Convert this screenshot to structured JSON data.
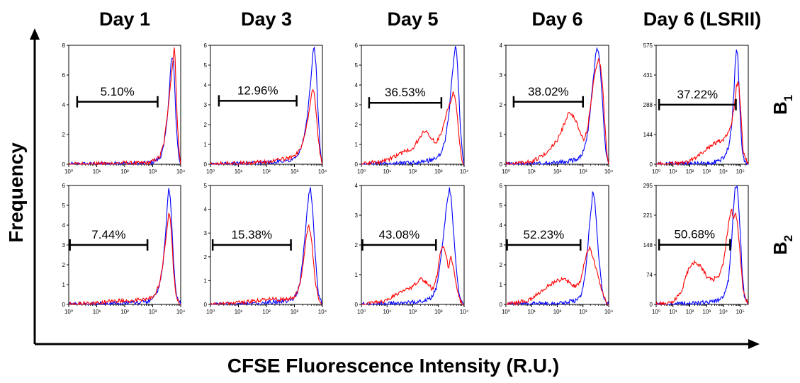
{
  "figure": {
    "x_axis_title": "CFSE Fluorescence Intensity (R.U.)",
    "y_axis_title": "Frequency",
    "column_titles": [
      "Day 1",
      "Day 3",
      "Day 5",
      "Day 6",
      "Day 6 (LSRII)"
    ],
    "row_labels": [
      {
        "main": "B",
        "sub": "1"
      },
      {
        "main": "B",
        "sub": "2"
      }
    ],
    "colors": {
      "series_blue": "#0000ff",
      "series_red": "#ff0000",
      "axis": "#000000"
    }
  },
  "chart_data": [
    {
      "type": "line",
      "panel": "B1 Day 1",
      "xscale": "log",
      "xlim": [
        1,
        10000
      ],
      "ylim": [
        0,
        8
      ],
      "yticks": [
        "0",
        "2",
        "4",
        "6",
        "8"
      ],
      "xticks": [
        "10^0",
        "10^1",
        "10^2",
        "10^3",
        "10^4"
      ],
      "gate": {
        "label": "5.10%",
        "x": [
          2,
          1500
        ],
        "y": 4.2
      },
      "series": [
        {
          "color": "blue",
          "x": [
            1,
            30,
            80,
            200,
            600,
            1000,
            1800,
            2500,
            3200,
            4000,
            4500,
            5000,
            5500,
            6000,
            7000,
            8500,
            10000
          ],
          "y": [
            0,
            0.03,
            0.08,
            0.05,
            0.08,
            0.15,
            0.4,
            1.2,
            2.8,
            5.2,
            6.8,
            7.2,
            7.0,
            5.5,
            2.5,
            0.5,
            0
          ]
        },
        {
          "color": "red",
          "x": [
            1,
            40,
            100,
            300,
            700,
            1000,
            1800,
            2500,
            3200,
            4000,
            4800,
            5500,
            6000,
            6500,
            7500,
            9000,
            10000
          ],
          "y": [
            0,
            0.05,
            0.1,
            0.06,
            0.1,
            0.2,
            0.5,
            1.4,
            3.0,
            4.8,
            6.2,
            7.4,
            7.9,
            6.5,
            3.0,
            0.6,
            0
          ]
        }
      ]
    },
    {
      "type": "line",
      "panel": "B1 Day 3",
      "xscale": "log",
      "xlim": [
        1,
        10000
      ],
      "ylim": [
        0,
        6
      ],
      "yticks": [
        "0",
        "1",
        "2",
        "3",
        "4",
        "5",
        "6"
      ],
      "xticks": [
        "10^0",
        "10^1",
        "10^2",
        "10^3",
        "10^4"
      ],
      "gate": {
        "label": "12.96%",
        "x": [
          2,
          1200
        ],
        "y": 3.2
      },
      "series": [
        {
          "color": "blue",
          "x": [
            1,
            50,
            150,
            400,
            800,
            1200,
            1800,
            2500,
            3200,
            4000,
            4600,
            5200,
            6000,
            7000,
            8500,
            10000
          ],
          "y": [
            0,
            0.05,
            0.1,
            0.15,
            0.25,
            0.4,
            0.9,
            1.8,
            3.0,
            4.5,
            5.8,
            6.0,
            4.8,
            2.5,
            0.6,
            0
          ]
        },
        {
          "color": "red",
          "x": [
            1,
            40,
            150,
            400,
            800,
            1200,
            1800,
            2500,
            3200,
            4000,
            4600,
            5200,
            6000,
            7000,
            8500,
            10000
          ],
          "y": [
            0,
            0.08,
            0.15,
            0.25,
            0.35,
            0.5,
            0.9,
            1.6,
            2.5,
            3.4,
            3.8,
            3.6,
            2.6,
            1.4,
            0.4,
            0
          ]
        }
      ]
    },
    {
      "type": "line",
      "panel": "B1 Day 5",
      "xscale": "log",
      "xlim": [
        1,
        10000
      ],
      "ylim": [
        0,
        6
      ],
      "yticks": [
        "0",
        "1",
        "2",
        "3",
        "4",
        "5",
        "6"
      ],
      "xticks": [
        "10^0",
        "10^1",
        "10^2",
        "10^3",
        "10^4"
      ],
      "gate": {
        "label": "36.53%",
        "x": [
          2,
          1300
        ],
        "y": 3.1
      },
      "series": [
        {
          "color": "blue",
          "x": [
            1,
            50,
            200,
            500,
            900,
            1300,
            1800,
            2500,
            3200,
            4000,
            4600,
            5200,
            6000,
            7000,
            8500,
            10000
          ],
          "y": [
            0,
            0.05,
            0.1,
            0.2,
            0.35,
            0.6,
            1.2,
            2.4,
            4.0,
            5.4,
            6.0,
            5.6,
            4.0,
            2.0,
            0.5,
            0
          ]
        },
        {
          "color": "red",
          "x": [
            1,
            10,
            30,
            60,
            100,
            200,
            300,
            500,
            800,
            1200,
            1600,
            2200,
            3000,
            3800,
            4600,
            5500,
            6500,
            8000,
            10000
          ],
          "y": [
            0,
            0.2,
            0.5,
            0.7,
            0.8,
            1.4,
            1.7,
            1.3,
            1.1,
            1.5,
            2.0,
            2.8,
            3.2,
            3.6,
            3.3,
            2.4,
            1.2,
            0.3,
            0
          ]
        }
      ]
    },
    {
      "type": "line",
      "panel": "B1 Day 6",
      "xscale": "log",
      "xlim": [
        1,
        10000
      ],
      "ylim": [
        0,
        4
      ],
      "yticks": [
        "0",
        "1",
        "2",
        "3",
        "4"
      ],
      "xticks": [
        "10^0",
        "10^1",
        "10^2",
        "10^3",
        "10^4"
      ],
      "gate": {
        "label": "38.02%",
        "x": [
          2,
          1000
        ],
        "y": 2.1
      },
      "series": [
        {
          "color": "blue",
          "x": [
            1,
            50,
            200,
            500,
            900,
            1200,
            1600,
            2000,
            2600,
            3200,
            3800,
            4500,
            5500,
            6500,
            8000,
            10000
          ],
          "y": [
            0,
            0.03,
            0.08,
            0.15,
            0.3,
            0.6,
            1.2,
            2.0,
            3.0,
            3.8,
            3.9,
            3.4,
            2.4,
            1.2,
            0.3,
            0
          ]
        },
        {
          "color": "red",
          "x": [
            1,
            10,
            30,
            60,
            100,
            200,
            300,
            500,
            800,
            1100,
            1500,
            2000,
            2600,
            3200,
            4000,
            4800,
            5800,
            7000,
            8500,
            10000
          ],
          "y": [
            0,
            0.1,
            0.3,
            0.6,
            0.8,
            1.4,
            1.8,
            1.5,
            1.0,
            0.8,
            1.2,
            2.0,
            2.8,
            3.2,
            3.6,
            3.3,
            2.6,
            1.4,
            0.4,
            0
          ]
        }
      ]
    },
    {
      "type": "line",
      "panel": "B1 Day 6 (LSRII)",
      "xscale": "log",
      "xlim": [
        1,
        300000
      ],
      "ylim": [
        0,
        575
      ],
      "yticks": [
        "0",
        "144",
        "288",
        "431",
        "575"
      ],
      "xticks": [
        "10^0",
        "10^1",
        "10^2",
        "10^3",
        "10^4",
        "10^5"
      ],
      "gate": {
        "label": "37.22%",
        "x": [
          1.5,
          55000
        ],
        "y": 288
      },
      "series": [
        {
          "color": "blue",
          "x": [
            1,
            100,
            1000,
            5000,
            10000,
            20000,
            30000,
            40000,
            50000,
            60000,
            70000,
            80000,
            100000,
            130000,
            180000,
            300000
          ],
          "y": [
            0,
            2,
            5,
            15,
            30,
            80,
            180,
            320,
            480,
            560,
            540,
            420,
            220,
            70,
            10,
            0
          ]
        },
        {
          "color": "red",
          "x": [
            1,
            30,
            100,
            300,
            1000,
            3000,
            10000,
            20000,
            30000,
            40000,
            50000,
            60000,
            80000,
            100000,
            150000,
            300000
          ],
          "y": [
            0,
            5,
            15,
            40,
            75,
            100,
            120,
            160,
            200,
            260,
            320,
            380,
            400,
            300,
            60,
            0
          ]
        }
      ]
    },
    {
      "type": "line",
      "panel": "B2 Day 1",
      "xscale": "log",
      "xlim": [
        1,
        10000
      ],
      "ylim": [
        0,
        6
      ],
      "yticks": [
        "0",
        "1",
        "2",
        "3",
        "4",
        "5",
        "6"
      ],
      "xticks": [
        "10^0",
        "10^1",
        "10^2",
        "10^3",
        "10^4"
      ],
      "gate": {
        "label": "7.44%",
        "x": [
          1.1,
          650
        ],
        "y": 3.0
      },
      "series": [
        {
          "color": "blue",
          "x": [
            1,
            40,
            150,
            400,
            800,
            1200,
            1700,
            2300,
            2800,
            3300,
            3700,
            4200,
            4800,
            5600,
            7000,
            10000
          ],
          "y": [
            0,
            0.05,
            0.08,
            0.1,
            0.2,
            0.4,
            0.9,
            2.0,
            3.4,
            4.8,
            5.8,
            5.5,
            4.0,
            2.0,
            0.4,
            0
          ]
        },
        {
          "color": "red",
          "x": [
            1,
            20,
            60,
            150,
            400,
            800,
            1200,
            1700,
            2300,
            2800,
            3300,
            3700,
            4200,
            4800,
            5600,
            7000,
            10000
          ],
          "y": [
            0,
            0.12,
            0.2,
            0.15,
            0.25,
            0.3,
            0.5,
            1.0,
            2.0,
            3.0,
            3.9,
            4.6,
            4.4,
            3.3,
            1.6,
            0.3,
            0
          ]
        }
      ]
    },
    {
      "type": "line",
      "panel": "B2 Day 3",
      "xscale": "log",
      "xlim": [
        1,
        10000
      ],
      "ylim": [
        0,
        5
      ],
      "yticks": [
        "0",
        "1",
        "2",
        "3",
        "4",
        "5"
      ],
      "xticks": [
        "10^0",
        "10^1",
        "10^2",
        "10^3",
        "10^4"
      ],
      "gate": {
        "label": "15.38%",
        "x": [
          1.2,
          750
        ],
        "y": 2.5
      },
      "series": [
        {
          "color": "blue",
          "x": [
            1,
            40,
            150,
            500,
            900,
            1300,
            1700,
            2200,
            2700,
            3200,
            3700,
            4200,
            4800,
            5600,
            7000,
            10000
          ],
          "y": [
            0,
            0.05,
            0.1,
            0.15,
            0.25,
            0.5,
            1.2,
            2.4,
            3.6,
            4.6,
            4.9,
            4.4,
            3.4,
            2.0,
            0.5,
            0
          ]
        },
        {
          "color": "red",
          "x": [
            1,
            20,
            60,
            150,
            400,
            900,
            1300,
            1700,
            2200,
            2700,
            3200,
            3700,
            4200,
            4800,
            5600,
            7000,
            10000
          ],
          "y": [
            0,
            0.1,
            0.18,
            0.25,
            0.2,
            0.3,
            0.5,
            1.0,
            2.0,
            2.9,
            3.3,
            3.1,
            2.6,
            1.8,
            1.0,
            0.3,
            0
          ]
        }
      ]
    },
    {
      "type": "line",
      "panel": "B2 Day 5",
      "xscale": "log",
      "xlim": [
        1,
        10000
      ],
      "ylim": [
        0,
        4
      ],
      "yticks": [
        "0",
        "1",
        "2",
        "3",
        "4"
      ],
      "xticks": [
        "10^0",
        "10^1",
        "10^2",
        "10^3",
        "10^4"
      ],
      "gate": {
        "label": "43.08%",
        "x": [
          1.1,
          800
        ],
        "y": 2.0
      },
      "series": [
        {
          "color": "blue",
          "x": [
            1,
            60,
            200,
            500,
            800,
            1100,
            1500,
            1900,
            2300,
            2700,
            3100,
            3500,
            4200,
            5200,
            6500,
            8000,
            10000
          ],
          "y": [
            0,
            0.05,
            0.1,
            0.2,
            0.5,
            1.2,
            2.2,
            3.0,
            3.6,
            3.9,
            3.6,
            3.0,
            2.0,
            1.0,
            0.3,
            0.1,
            0
          ]
        },
        {
          "color": "red",
          "x": [
            1,
            8,
            20,
            50,
            100,
            200,
            400,
            600,
            900,
            1200,
            1600,
            2000,
            2500,
            3000,
            3600,
            4500,
            5500,
            7000,
            10000
          ],
          "y": [
            0,
            0.1,
            0.3,
            0.5,
            0.6,
            0.9,
            0.7,
            0.5,
            1.0,
            1.8,
            2.0,
            1.6,
            1.2,
            1.6,
            1.4,
            0.9,
            0.5,
            0.1,
            0
          ]
        }
      ]
    },
    {
      "type": "line",
      "panel": "B2 Day 6",
      "xscale": "log",
      "xlim": [
        1,
        10000
      ],
      "ylim": [
        0,
        6
      ],
      "yticks": [
        "0",
        "1",
        "2",
        "3",
        "4",
        "5",
        "6"
      ],
      "xticks": [
        "10^0",
        "10^1",
        "10^2",
        "10^3",
        "10^4"
      ],
      "gate": {
        "label": "52.23%",
        "x": [
          1.1,
          800
        ],
        "y": 3.0
      },
      "series": [
        {
          "color": "blue",
          "x": [
            1,
            50,
            200,
            500,
            800,
            1000,
            1300,
            1600,
            2000,
            2400,
            2800,
            3300,
            4000,
            5000,
            6500,
            10000
          ],
          "y": [
            0,
            0.05,
            0.1,
            0.2,
            0.4,
            0.8,
            1.8,
            3.2,
            4.6,
            5.7,
            5.4,
            4.2,
            2.6,
            1.2,
            0.3,
            0
          ]
        },
        {
          "color": "red",
          "x": [
            1,
            8,
            20,
            50,
            100,
            180,
            300,
            500,
            800,
            1100,
            1400,
            1800,
            2300,
            2900,
            3600,
            4500,
            6000,
            8000,
            10000
          ],
          "y": [
            0,
            0.2,
            0.6,
            1.0,
            1.2,
            1.3,
            1.1,
            0.9,
            1.2,
            2.0,
            2.6,
            2.9,
            2.5,
            2.0,
            1.6,
            1.1,
            0.5,
            0.1,
            0
          ]
        }
      ]
    },
    {
      "type": "line",
      "panel": "B2 Day 6 (LSRII)",
      "xscale": "log",
      "xlim": [
        1,
        300000
      ],
      "ylim": [
        0,
        295
      ],
      "yticks": [
        "0",
        "74",
        "148",
        "221",
        "295"
      ],
      "xticks": [
        "10^0",
        "10^1",
        "10^2",
        "10^3",
        "10^4",
        "10^5"
      ],
      "gate": {
        "label": "50.68%",
        "x": [
          1.5,
          25000
        ],
        "y": 148
      },
      "series": [
        {
          "color": "blue",
          "x": [
            1,
            100,
            1000,
            5000,
            10000,
            20000,
            30000,
            40000,
            50000,
            60000,
            70000,
            80000,
            100000,
            130000,
            180000,
            300000
          ],
          "y": [
            0,
            2,
            5,
            10,
            20,
            60,
            150,
            240,
            290,
            295,
            285,
            250,
            180,
            80,
            15,
            0
          ]
        },
        {
          "color": "red",
          "x": [
            1,
            10,
            30,
            60,
            100,
            200,
            400,
            700,
            1000,
            2000,
            5000,
            10000,
            15000,
            20000,
            30000,
            40000,
            50000,
            70000,
            100000,
            150000,
            300000
          ],
          "y": [
            0,
            5,
            30,
            70,
            95,
            105,
            95,
            80,
            70,
            60,
            70,
            100,
            160,
            200,
            240,
            210,
            230,
            200,
            120,
            30,
            0
          ]
        }
      ]
    }
  ]
}
